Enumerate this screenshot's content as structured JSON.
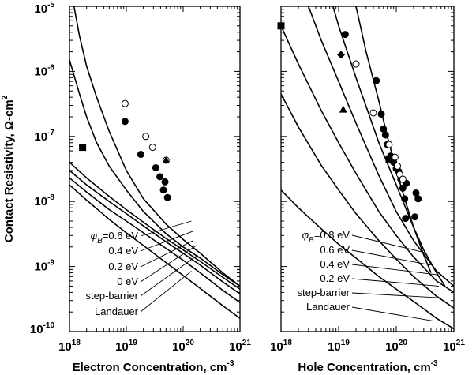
{
  "chart_data": [
    {
      "type": "line",
      "xlabel": "Electron Concentration, cm",
      "xlabel_exp": "-3",
      "ylabel": "Contact Resistivity, Ω-cm",
      "ylabel_exp": "2",
      "xscale": "log",
      "yscale": "log",
      "xlim": [
        1e+18,
        1e+21
      ],
      "ylim": [
        1e-10,
        1e-05
      ],
      "x_ticks": [
        {
          "base": "10",
          "exp": "18"
        },
        {
          "base": "10",
          "exp": "19"
        },
        {
          "base": "10",
          "exp": "20"
        },
        {
          "base": "10",
          "exp": "21"
        }
      ],
      "y_ticks": [
        {
          "base": "10",
          "exp": "-10"
        },
        {
          "base": "10",
          "exp": "-9"
        },
        {
          "base": "10",
          "exp": "-8"
        },
        {
          "base": "10",
          "exp": "-7"
        },
        {
          "base": "10",
          "exp": "-6"
        },
        {
          "base": "10",
          "exp": "-5"
        }
      ],
      "series": [
        {
          "label_prefix": "φ",
          "label_sub": "B",
          "label": "=0.6 eV",
          "color": "#000000",
          "x": [
            1.2e+18,
            1.5e+18,
            2e+18,
            3e+18,
            5e+18,
            1e+19,
            2e+19,
            5e+19,
            1e+20,
            2e+20,
            5e+20,
            1e+21
          ],
          "y": [
            1e-05,
            3.5e-06,
            1.2e-06,
            4e-07,
            1.2e-07,
            3e-08,
            1.1e-08,
            4.5e-09,
            2.6e-09,
            1.6e-09,
            8e-10,
            5e-10
          ]
        },
        {
          "label": "0.4 eV",
          "color": "#000000",
          "x": [
            1e+18,
            1.5e+18,
            2e+18,
            3e+18,
            5e+18,
            1e+19,
            2e+19,
            5e+19,
            1e+20,
            2e+20,
            5e+20,
            1e+21
          ],
          "y": [
            1.5e-06,
            4.5e-07,
            2e-07,
            8e-08,
            3.5e-08,
            1.5e-08,
            7e-09,
            3.2e-09,
            2e-09,
            1.35e-09,
            7.5e-10,
            5e-10
          ]
        },
        {
          "label": "0.2 eV",
          "color": "#000000",
          "x": [
            1e+18,
            2e+18,
            5e+18,
            1e+19,
            2e+19,
            5e+19,
            1e+20,
            2e+20,
            5e+20,
            1e+21
          ],
          "y": [
            4e-08,
            2.3e-08,
            1.2e-08,
            7.5e-09,
            4.8e-09,
            2.7e-09,
            1.8e-09,
            1.2e-09,
            6.8e-10,
            4.5e-10
          ]
        },
        {
          "label": "0 eV",
          "color": "#000000",
          "x": [
            1e+18,
            2e+18,
            5e+18,
            1e+19,
            2e+19,
            5e+19,
            1e+20,
            2e+20,
            5e+20,
            1e+21
          ],
          "y": [
            3e-08,
            1.8e-08,
            1e-08,
            6.5e-09,
            4.2e-09,
            2.4e-09,
            1.6e-09,
            1.05e-09,
            5.8e-10,
            3.8e-10
          ]
        },
        {
          "label": "step-barrier",
          "color": "#000000",
          "x": [
            1e+18,
            2e+18,
            5e+18,
            1e+19,
            2e+19,
            5e+19,
            1e+20,
            2e+20,
            5e+20,
            1e+21
          ],
          "y": [
            2.3e-08,
            1.4e-08,
            7.5e-09,
            5e-09,
            3.3e-09,
            1.9e-09,
            1.25e-09,
            8e-10,
            4.3e-10,
            2.8e-10
          ]
        },
        {
          "label": "Landauer",
          "color": "#777777",
          "x": [
            1e+18,
            2e+18,
            5e+18,
            1e+19,
            2e+19,
            5e+19,
            1e+20,
            2e+20,
            5e+20,
            1e+21
          ],
          "y": [
            1.8e-08,
            1.05e-08,
            5.3e-09,
            3.3e-09,
            2.1e-09,
            1.15e-09,
            7.3e-10,
            4.6e-10,
            2.5e-10,
            1.6e-10
          ]
        }
      ],
      "label_anchors": [
        {
          "x": 1.4e+20,
          "y": 5e-09
        },
        {
          "x": 1.5e+20,
          "y": 3.5e-09
        },
        {
          "x": 1.5e+20,
          "y": 2.5e-09
        },
        {
          "x": 1.7e+20,
          "y": 2.1e-09
        },
        {
          "x": 1.8e+20,
          "y": 1.5e-09
        },
        {
          "x": 1.4e+20,
          "y": 8.5e-10
        }
      ],
      "points": [
        {
          "marker": "circle-filled",
          "x": [
            9.5e+18,
            1.8e+19,
            3.3e+19,
            3.9e+19,
            4.8e+19,
            5.3e+19,
            4.5e+19
          ],
          "y": [
            1.7e-07,
            5.3e-08,
            3.3e-08,
            2.4e-08,
            2e-08,
            1.15e-08,
            1.5e-08
          ]
        },
        {
          "marker": "circle-open",
          "x": [
            9.5e+18,
            2.2e+19,
            2.9e+19,
            5e+19
          ],
          "y": [
            3.2e-07,
            1e-07,
            6.8e-08,
            4.3e-08
          ]
        },
        {
          "marker": "triangle",
          "x": [
            5e+19
          ],
          "y": [
            4.3e-08
          ]
        },
        {
          "marker": "square",
          "x": [
            1.7e+18
          ],
          "y": [
            6.8e-08
          ]
        }
      ]
    },
    {
      "type": "line",
      "xlabel": "Hole Concentration, cm",
      "xlabel_exp": "-3",
      "xscale": "log",
      "yscale": "log",
      "xlim": [
        1e+18,
        1e+21
      ],
      "ylim": [
        1e-10,
        1e-05
      ],
      "x_ticks": [
        {
          "base": "10",
          "exp": "18"
        },
        {
          "base": "10",
          "exp": "19"
        },
        {
          "base": "10",
          "exp": "20"
        },
        {
          "base": "10",
          "exp": "21"
        }
      ],
      "series": [
        {
          "label_prefix": "φ",
          "label_sub": "B",
          "label": "=0.8 eV",
          "color": "#000000",
          "x": [
            2e+19,
            3e+19,
            5e+19,
            7e+19,
            1e+20,
            1.5e+20,
            2e+20,
            3e+20,
            4e+20
          ],
          "y": [
            1e-05,
            2e-06,
            3.5e-07,
            1e-07,
            3e-08,
            9e-09,
            4e-09,
            1.5e-09,
            8e-10
          ]
        },
        {
          "label": "0.6 eV",
          "color": "#000000",
          "x": [
            8e+18,
            1e+19,
            2e+19,
            5e+19,
            1e+20,
            2e+20,
            3e+20,
            5e+20,
            7e+20
          ],
          "y": [
            1e-05,
            5e-06,
            8e-07,
            8e-08,
            1.8e-08,
            4e-09,
            1.8e-09,
            8e-10,
            5e-10
          ]
        },
        {
          "label": "0.4 eV",
          "color": "#000000",
          "x": [
            3e+18,
            5e+18,
            1e+19,
            2e+19,
            5e+19,
            1e+20,
            2e+20,
            5e+20,
            1e+21
          ],
          "y": [
            1e-05,
            3e-06,
            7e-07,
            1.6e-07,
            2.5e-08,
            7e-09,
            2.5e-09,
            8.5e-10,
            5e-10
          ]
        },
        {
          "label": "0.2 eV",
          "color": "#000000",
          "x": [
            1e+18,
            2e+18,
            5e+18,
            1e+19,
            2e+19,
            5e+19,
            1e+20,
            2e+20,
            5e+20,
            1e+21
          ],
          "y": [
            5e-06,
            1.3e-06,
            2.5e-07,
            8e-08,
            2.7e-08,
            7e-09,
            3e-09,
            1.4e-09,
            6e-10,
            4e-10
          ]
        },
        {
          "label": "step-barrier",
          "color": "#000000",
          "x": [
            1e+18,
            2e+18,
            5e+18,
            1e+19,
            2e+19,
            5e+19,
            1e+20,
            2e+20,
            5e+20,
            1e+21
          ],
          "y": [
            4.5e-07,
            1.4e-07,
            3.6e-08,
            1.5e-08,
            6.5e-09,
            2.5e-09,
            1.3e-09,
            7e-10,
            3.5e-10,
            2.3e-10
          ]
        },
        {
          "label": "Landauer",
          "color": "#000000",
          "x": [
            1e+18,
            2e+18,
            5e+18,
            1e+19,
            2e+19,
            5e+19,
            1e+20,
            2e+20,
            5e+20,
            1e+21
          ],
          "y": [
            1.5e-08,
            8e-09,
            3.8e-09,
            2.2e-09,
            1.35e-09,
            7e-10,
            4.5e-10,
            2.9e-10,
            1.6e-10,
            1.1e-10
          ]
        }
      ],
      "label_anchors": [
        {
          "x": 3.5e+20,
          "y": 1.6e-09
        },
        {
          "x": 4e+20,
          "y": 1.05e-09
        },
        {
          "x": 5e+20,
          "y": 7.5e-10
        },
        {
          "x": 5.5e+20,
          "y": 5e-10
        },
        {
          "x": 6e+20,
          "y": 3.3e-10
        },
        {
          "x": 4.5e+20,
          "y": 1.45e-10
        }
      ],
      "points": [
        {
          "marker": "circle-filled",
          "x": [
            1.3e+19,
            4.5e+19,
            5.5e+19,
            6e+19,
            6.5e+19,
            7e+19,
            8e+19,
            8.5e+19,
            9e+19,
            1e+20,
            1.1e+20,
            1.2e+20,
            1.3e+20,
            1.4e+20,
            1.5e+20,
            2.2e+20,
            2.4e+20,
            1.45e+20,
            2.1e+20
          ],
          "y": [
            3.7e-06,
            7.2e-07,
            2.2e-07,
            1.3e-07,
            1.05e-07,
            7.5e-08,
            5e-08,
            4.5e-08,
            4e-08,
            3.2e-08,
            2.9e-08,
            2.2e-08,
            1.6e-08,
            1.1e-08,
            1.9e-08,
            1.35e-08,
            1.1e-08,
            5.5e-09,
            5.8e-09
          ]
        },
        {
          "marker": "circle-open",
          "x": [
            2e+19,
            4e+19,
            7.5e+19,
            9.5e+19,
            1.05e+20,
            1.15e+20,
            1.3e+20
          ],
          "y": [
            1.3e-06,
            2.3e-07,
            7.5e-08,
            4.8e-08,
            3.5e-08,
            2.6e-08,
            2.2e-08
          ]
        },
        {
          "marker": "diamond",
          "x": [
            1.1e+19
          ],
          "y": [
            1.8e-06
          ]
        },
        {
          "marker": "triangle",
          "x": [
            1.2e+19
          ],
          "y": [
            2.6e-07
          ]
        },
        {
          "marker": "square",
          "x": [
            1e+18,
            7.5e+19
          ],
          "y": [
            5e-06,
            4.5e-08
          ]
        }
      ]
    }
  ]
}
